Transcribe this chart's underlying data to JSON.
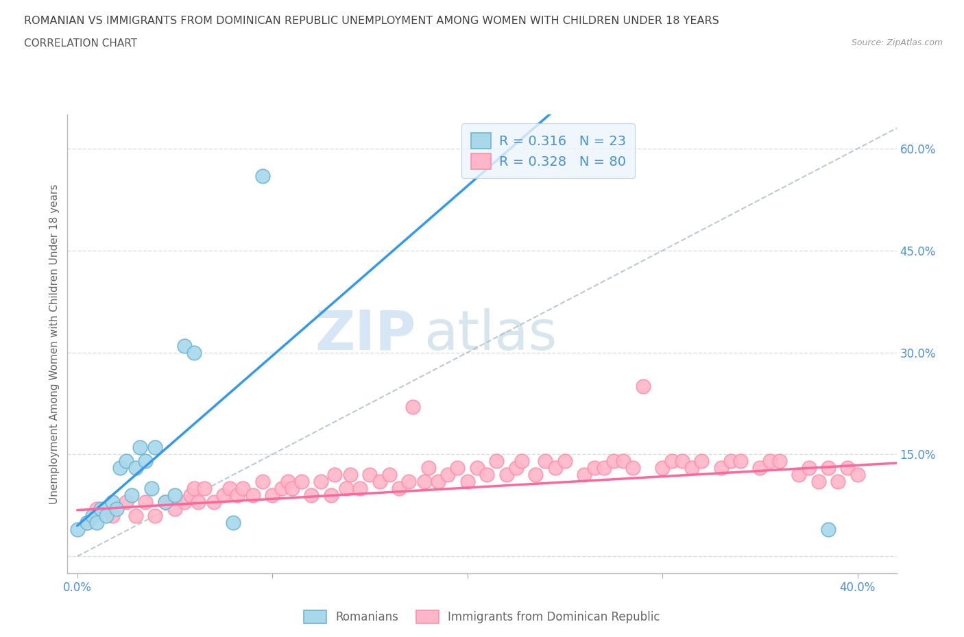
{
  "title_line1": "ROMANIAN VS IMMIGRANTS FROM DOMINICAN REPUBLIC UNEMPLOYMENT AMONG WOMEN WITH CHILDREN UNDER 18 YEARS",
  "title_line2": "CORRELATION CHART",
  "source": "Source: ZipAtlas.com",
  "xlabel_ticks": [
    "0.0%",
    "",
    "",
    "",
    "40.0%"
  ],
  "xlabel_tick_vals": [
    0.0,
    0.1,
    0.2,
    0.3,
    0.4
  ],
  "ylabel_ticks": [
    "",
    "15.0%",
    "30.0%",
    "45.0%",
    "60.0%"
  ],
  "ylabel_tick_vals": [
    0.0,
    0.15,
    0.3,
    0.45,
    0.6
  ],
  "ylabel_label": "Unemployment Among Women with Children Under 18 years",
  "xlim": [
    -0.005,
    0.42
  ],
  "ylim": [
    -0.025,
    0.65
  ],
  "romanian_color": "#A8D8EA",
  "dominican_color": "#FFB6C8",
  "romanian_edge": "#6EB5D5",
  "dominican_edge": "#FF8FAB",
  "legend_box_color": "#EBF5FC",
  "r_romanian": 0.316,
  "n_romanian": 23,
  "r_dominican": 0.328,
  "n_dominican": 80,
  "legend_text_color": "#4A90D9",
  "watermark_zip": "ZIP",
  "watermark_atlas": "atlas",
  "trendline_color_romanian": "#3399EE",
  "trendline_color_dominican": "#FF6699",
  "trendline_dashed_color": "#AABBCC",
  "grid_color": "#DDDDDD",
  "background_color": "#FFFFFF",
  "romanians_x": [
    0.0,
    0.005,
    0.008,
    0.01,
    0.012,
    0.015,
    0.018,
    0.02,
    0.022,
    0.025,
    0.028,
    0.03,
    0.032,
    0.035,
    0.038,
    0.04,
    0.045,
    0.05,
    0.055,
    0.06,
    0.08,
    0.095,
    0.385
  ],
  "romanians_y": [
    0.04,
    0.05,
    0.06,
    0.05,
    0.07,
    0.06,
    0.08,
    0.07,
    0.13,
    0.14,
    0.09,
    0.13,
    0.16,
    0.14,
    0.1,
    0.16,
    0.08,
    0.09,
    0.31,
    0.3,
    0.05,
    0.56,
    0.04
  ],
  "dominican_x": [
    0.005,
    0.01,
    0.018,
    0.025,
    0.03,
    0.035,
    0.04,
    0.045,
    0.05,
    0.055,
    0.058,
    0.06,
    0.062,
    0.065,
    0.07,
    0.075,
    0.078,
    0.082,
    0.085,
    0.09,
    0.095,
    0.1,
    0.105,
    0.108,
    0.11,
    0.115,
    0.12,
    0.125,
    0.13,
    0.132,
    0.138,
    0.14,
    0.145,
    0.15,
    0.155,
    0.16,
    0.165,
    0.17,
    0.172,
    0.178,
    0.18,
    0.185,
    0.19,
    0.195,
    0.2,
    0.205,
    0.21,
    0.215,
    0.22,
    0.225,
    0.228,
    0.235,
    0.24,
    0.245,
    0.25,
    0.26,
    0.265,
    0.27,
    0.275,
    0.28,
    0.285,
    0.29,
    0.3,
    0.305,
    0.31,
    0.315,
    0.32,
    0.33,
    0.335,
    0.34,
    0.35,
    0.355,
    0.36,
    0.37,
    0.375,
    0.38,
    0.385,
    0.39,
    0.395,
    0.4
  ],
  "dominican_y": [
    0.05,
    0.07,
    0.06,
    0.08,
    0.06,
    0.08,
    0.06,
    0.08,
    0.07,
    0.08,
    0.09,
    0.1,
    0.08,
    0.1,
    0.08,
    0.09,
    0.1,
    0.09,
    0.1,
    0.09,
    0.11,
    0.09,
    0.1,
    0.11,
    0.1,
    0.11,
    0.09,
    0.11,
    0.09,
    0.12,
    0.1,
    0.12,
    0.1,
    0.12,
    0.11,
    0.12,
    0.1,
    0.11,
    0.22,
    0.11,
    0.13,
    0.11,
    0.12,
    0.13,
    0.11,
    0.13,
    0.12,
    0.14,
    0.12,
    0.13,
    0.14,
    0.12,
    0.14,
    0.13,
    0.14,
    0.12,
    0.13,
    0.13,
    0.14,
    0.14,
    0.13,
    0.25,
    0.13,
    0.14,
    0.14,
    0.13,
    0.14,
    0.13,
    0.14,
    0.14,
    0.13,
    0.14,
    0.14,
    0.12,
    0.13,
    0.11,
    0.13,
    0.11,
    0.13,
    0.12
  ]
}
